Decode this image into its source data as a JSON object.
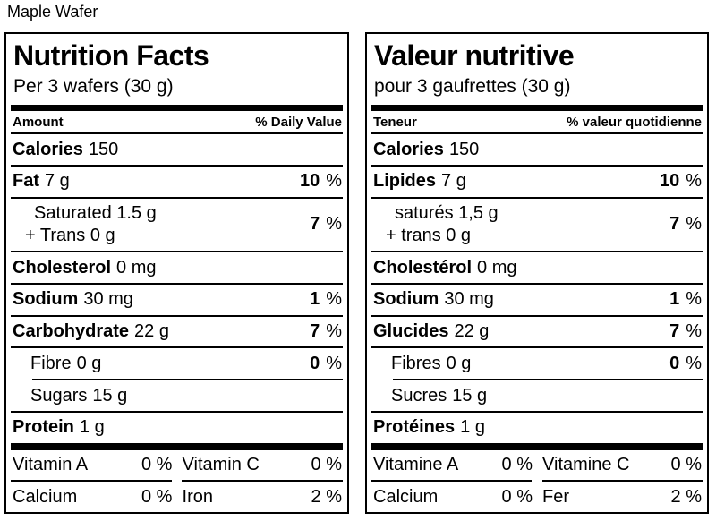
{
  "product_title": "Maple Wafer",
  "colors": {
    "text": "#000000",
    "rules": "#000000",
    "background": "#ffffff"
  },
  "panels": [
    {
      "lang": "en",
      "title": "Nutrition Facts",
      "serving": "Per 3 wafers (30 g)",
      "columns": {
        "amount": "Amount",
        "daily_value": "% Daily Value"
      },
      "rows": {
        "calories": {
          "label": "Calories",
          "amount": "150"
        },
        "fat": {
          "label": "Fat",
          "amount": "7 g",
          "dv": "10",
          "dv_unit": "%"
        },
        "saturated": {
          "line1": "Saturated 1.5 g",
          "line2": "+ Trans 0 g",
          "dv": "7",
          "dv_unit": "%"
        },
        "cholesterol": {
          "label": "Cholesterol",
          "amount": "0 mg"
        },
        "sodium": {
          "label": "Sodium",
          "amount": "30 mg",
          "dv": "1",
          "dv_unit": "%"
        },
        "carbohydrate": {
          "label": "Carbohydrate",
          "amount": "22 g",
          "dv": "7",
          "dv_unit": "%"
        },
        "fibre": {
          "label": "Fibre",
          "amount": "0 g",
          "dv": "0",
          "dv_unit": "%"
        },
        "sugars": {
          "label": "Sugars",
          "amount": "15 g"
        },
        "protein": {
          "label": "Protein",
          "amount": "1 g"
        }
      },
      "micronutrients": {
        "vitamin_a": {
          "label": "Vitamin A",
          "value": "0 %"
        },
        "vitamin_c": {
          "label": "Vitamin C",
          "value": "0 %"
        },
        "calcium": {
          "label": "Calcium",
          "value": "0 %"
        },
        "iron": {
          "label": "Iron",
          "value": "2 %"
        }
      }
    },
    {
      "lang": "fr",
      "title": "Valeur nutritive",
      "serving": "pour 3 gaufrettes (30 g)",
      "columns": {
        "amount": "Teneur",
        "daily_value": "% valeur quotidienne"
      },
      "rows": {
        "calories": {
          "label": "Calories",
          "amount": "150"
        },
        "fat": {
          "label": "Lipides",
          "amount": "7 g",
          "dv": "10",
          "dv_unit": "%"
        },
        "saturated": {
          "line1": "saturés 1,5 g",
          "line2": "+ trans 0 g",
          "dv": "7",
          "dv_unit": "%"
        },
        "cholesterol": {
          "label": "Cholestérol",
          "amount": "0 mg"
        },
        "sodium": {
          "label": "Sodium",
          "amount": "30 mg",
          "dv": "1",
          "dv_unit": "%"
        },
        "carbohydrate": {
          "label": "Glucides",
          "amount": "22 g",
          "dv": "7",
          "dv_unit": "%"
        },
        "fibre": {
          "label": "Fibres",
          "amount": "0 g",
          "dv": "0",
          "dv_unit": "%"
        },
        "sugars": {
          "label": "Sucres",
          "amount": "15 g"
        },
        "protein": {
          "label": "Protéines",
          "amount": "1 g"
        }
      },
      "micronutrients": {
        "vitamin_a": {
          "label": "Vitamine A",
          "value": "0 %"
        },
        "vitamin_c": {
          "label": "Vitamine C",
          "value": "0 %"
        },
        "calcium": {
          "label": "Calcium",
          "value": "0 %"
        },
        "iron": {
          "label": "Fer",
          "value": "2 %"
        }
      }
    }
  ]
}
